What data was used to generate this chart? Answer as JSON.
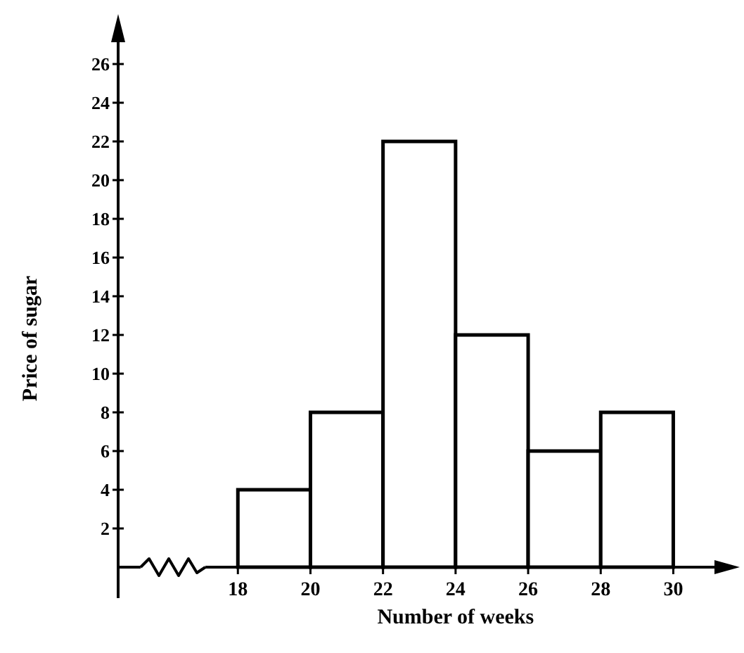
{
  "chart_data": {
    "type": "histogram",
    "xlabel": "Number of weeks",
    "ylabel": "Price of sugar",
    "bins": [
      18,
      20,
      22,
      24,
      26,
      28,
      30
    ],
    "values": [
      4,
      8,
      22,
      12,
      6,
      8
    ],
    "color": "#ffffff",
    "xlim": [
      14.7,
      31.6
    ],
    "xticks": [
      18,
      20,
      22,
      24,
      26,
      28,
      30
    ],
    "ylim": [
      0,
      28
    ],
    "yticks": [
      2,
      4,
      6,
      8,
      10,
      12,
      14,
      16,
      18,
      20,
      22,
      24,
      26
    ],
    "grid": false
  }
}
